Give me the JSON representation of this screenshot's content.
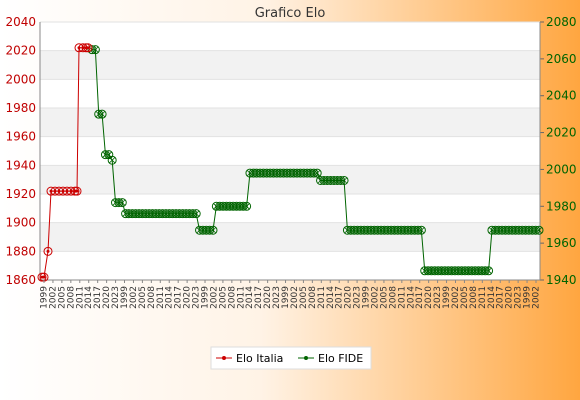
{
  "chart_data": {
    "type": "line",
    "title": "Grafico Elo",
    "y_left": {
      "min": 1860,
      "max": 2040,
      "ticks": [
        1860,
        1880,
        1900,
        1920,
        1940,
        1960,
        1980,
        2000,
        2020,
        2040
      ],
      "color": "#c00000"
    },
    "y_right": {
      "min": 1940,
      "max": 2080,
      "ticks": [
        1940,
        1960,
        1980,
        2000,
        2020,
        2040,
        2060,
        2080
      ],
      "color": "#006400"
    },
    "grid": true,
    "legend_position": "bottom-center",
    "series": [
      {
        "name": "Elo Italia",
        "axis": "left",
        "color": "#cc0000",
        "values": [
          1862,
          1862,
          1880,
          1922,
          1922,
          1922,
          1922,
          1922,
          1922,
          1922,
          1922,
          2022,
          2022,
          2022,
          2022
        ]
      },
      {
        "name": "Elo FIDE",
        "axis": "right",
        "color": "#006400",
        "values": [
          2065,
          2065,
          2030,
          2030,
          2008,
          2008,
          2005,
          1982,
          1982,
          1982,
          1976,
          1976,
          1976,
          1976,
          1976,
          1976,
          1976,
          1976,
          1976,
          1976,
          1976,
          1976,
          1976,
          1976,
          1976,
          1976,
          1976,
          1976,
          1976,
          1976,
          1976,
          1976,
          1967,
          1967,
          1967,
          1967,
          1967,
          1980,
          1980,
          1980,
          1980,
          1980,
          1980,
          1980,
          1980,
          1980,
          1980,
          1998,
          1998,
          1998,
          1998,
          1998,
          1998,
          1998,
          1998,
          1998,
          1998,
          1998,
          1998,
          1998,
          1998,
          1998,
          1998,
          1998,
          1998,
          1998,
          1998,
          1998,
          1994,
          1994,
          1994,
          1994,
          1994,
          1994,
          1994,
          1994,
          1967,
          1967,
          1967,
          1967,
          1967,
          1967,
          1967,
          1967,
          1967,
          1967,
          1967,
          1967,
          1967,
          1967,
          1967,
          1967,
          1967,
          1967,
          1967,
          1967,
          1967,
          1967,
          1967,
          1945,
          1945,
          1945,
          1945,
          1945,
          1945,
          1945,
          1945,
          1945,
          1945,
          1945,
          1945,
          1945,
          1945,
          1945,
          1945,
          1945,
          1945,
          1945,
          1945,
          1967,
          1967,
          1967,
          1967,
          1967,
          1967,
          1967,
          1967,
          1967,
          1967,
          1967,
          1967,
          1967,
          1967,
          1967
        ]
      }
    ],
    "x_tick_labels": [
      "1999",
      "2002",
      "2005",
      "2008",
      "2011",
      "2014",
      "2017",
      "2020",
      "2023"
    ]
  }
}
